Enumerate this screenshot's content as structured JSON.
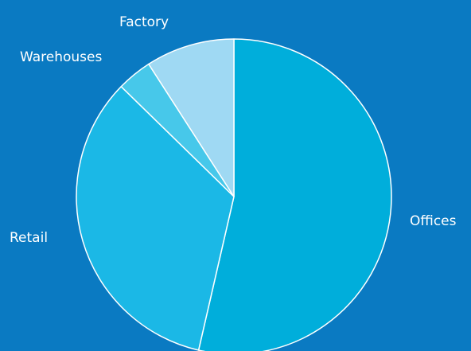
{
  "chart_data": {
    "type": "pie",
    "start_angle_deg": 0,
    "direction": "clockwise",
    "background_color": "#0a7ac2",
    "slices": [
      {
        "label": "Offices",
        "value": 53.6,
        "color": "#00aedb"
      },
      {
        "label": "Retail",
        "value": 33.7,
        "color": "#1bb8e6"
      },
      {
        "label": "Warehouses",
        "value": 3.6,
        "color": "#47c8ea"
      },
      {
        "label": "Factory",
        "value": 9.1,
        "color": "#9fd9f3"
      }
    ]
  }
}
